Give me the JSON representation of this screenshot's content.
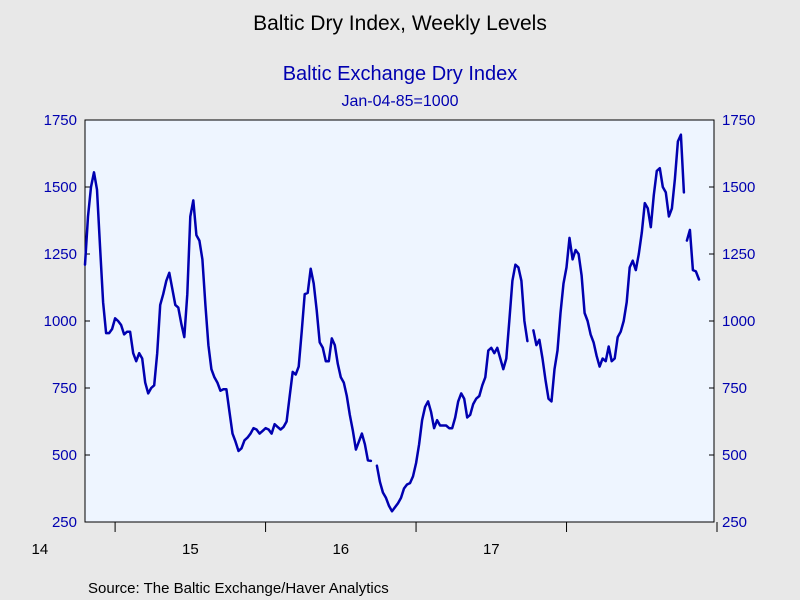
{
  "title": "Baltic Dry Index, Weekly Levels",
  "colors": {
    "page_background": "#e8e8e8",
    "plot_background": "#eef5ff",
    "series": "#0000b0",
    "axis": "#000000"
  },
  "chart_data": {
    "type": "line",
    "title": "Baltic Exchange Dry Index",
    "subtitle": "Jan-04-85=1000",
    "source": "Source:  The Baltic Exchange/Haver Analytics",
    "xlabel": "",
    "ylabel": "",
    "x_ticks": [
      "14",
      "15",
      "16",
      "17"
    ],
    "y_ticks": [
      "250",
      "500",
      "750",
      "1000",
      "1250",
      "1500",
      "1750"
    ],
    "ylim": [
      250,
      1750
    ],
    "xlim": [
      2013.8,
      2017.98
    ],
    "grid": false,
    "legend": "none",
    "y_axis_both_sides": true,
    "series": [
      {
        "segments": [
          [
            [
              2013.8,
              1210
            ],
            [
              2013.82,
              1390
            ],
            [
              2013.84,
              1500
            ],
            [
              2013.86,
              1555
            ],
            [
              2013.88,
              1490
            ],
            [
              2013.9,
              1280
            ],
            [
              2013.92,
              1070
            ],
            [
              2013.94,
              955
            ],
            [
              2013.96,
              955
            ],
            [
              2013.98,
              970
            ],
            [
              2014.0,
              1010
            ],
            [
              2014.02,
              1000
            ],
            [
              2014.04,
              985
            ],
            [
              2014.06,
              950
            ],
            [
              2014.08,
              960
            ],
            [
              2014.1,
              960
            ],
            [
              2014.12,
              880
            ],
            [
              2014.14,
              850
            ],
            [
              2014.16,
              880
            ],
            [
              2014.18,
              860
            ],
            [
              2014.2,
              770
            ],
            [
              2014.22,
              730
            ],
            [
              2014.24,
              750
            ],
            [
              2014.26,
              760
            ],
            [
              2014.28,
              880
            ],
            [
              2014.3,
              1060
            ],
            [
              2014.32,
              1100
            ],
            [
              2014.34,
              1150
            ],
            [
              2014.36,
              1180
            ],
            [
              2014.38,
              1120
            ],
            [
              2014.4,
              1060
            ],
            [
              2014.42,
              1050
            ],
            [
              2014.44,
              990
            ],
            [
              2014.46,
              940
            ],
            [
              2014.48,
              1100
            ],
            [
              2014.5,
              1390
            ],
            [
              2014.52,
              1450
            ],
            [
              2014.54,
              1320
            ],
            [
              2014.56,
              1300
            ],
            [
              2014.58,
              1230
            ],
            [
              2014.6,
              1060
            ],
            [
              2014.62,
              910
            ],
            [
              2014.64,
              820
            ],
            [
              2014.66,
              790
            ],
            [
              2014.68,
              770
            ],
            [
              2014.7,
              740
            ],
            [
              2014.72,
              745
            ],
            [
              2014.74,
              745
            ],
            [
              2014.76,
              660
            ],
            [
              2014.78,
              580
            ],
            [
              2014.8,
              550
            ],
            [
              2014.82,
              515
            ],
            [
              2014.84,
              525
            ],
            [
              2014.86,
              555
            ],
            [
              2014.88,
              565
            ],
            [
              2014.9,
              580
            ],
            [
              2014.92,
              600
            ],
            [
              2014.94,
              595
            ],
            [
              2014.96,
              580
            ],
            [
              2014.98,
              590
            ],
            [
              2015.0,
              600
            ],
            [
              2015.02,
              595
            ],
            [
              2015.04,
              580
            ],
            [
              2015.06,
              615
            ],
            [
              2015.08,
              605
            ],
            [
              2015.1,
              595
            ],
            [
              2015.12,
              605
            ],
            [
              2015.14,
              625
            ],
            [
              2015.16,
              720
            ],
            [
              2015.18,
              810
            ],
            [
              2015.2,
              800
            ],
            [
              2015.22,
              830
            ],
            [
              2015.24,
              960
            ],
            [
              2015.26,
              1100
            ],
            [
              2015.28,
              1105
            ],
            [
              2015.3,
              1195
            ],
            [
              2015.32,
              1140
            ],
            [
              2015.34,
              1040
            ],
            [
              2015.36,
              920
            ],
            [
              2015.38,
              900
            ],
            [
              2015.4,
              850
            ],
            [
              2015.42,
              850
            ],
            [
              2015.44,
              935
            ],
            [
              2015.46,
              910
            ],
            [
              2015.48,
              840
            ],
            [
              2015.5,
              790
            ],
            [
              2015.52,
              770
            ],
            [
              2015.54,
              720
            ],
            [
              2015.56,
              650
            ],
            [
              2015.58,
              590
            ],
            [
              2015.6,
              520
            ],
            [
              2015.62,
              550
            ],
            [
              2015.64,
              580
            ],
            [
              2015.66,
              540
            ],
            [
              2015.68,
              480
            ],
            [
              2015.7,
              478
            ]
          ],
          [
            [
              2015.74,
              460
            ],
            [
              2015.76,
              400
            ],
            [
              2015.78,
              360
            ],
            [
              2015.8,
              340
            ],
            [
              2015.82,
              310
            ],
            [
              2015.84,
              290
            ],
            [
              2015.86,
              305
            ],
            [
              2015.88,
              320
            ],
            [
              2015.9,
              340
            ],
            [
              2015.92,
              375
            ],
            [
              2015.94,
              390
            ],
            [
              2015.96,
              395
            ],
            [
              2015.98,
              420
            ],
            [
              2016.0,
              470
            ],
            [
              2016.02,
              540
            ],
            [
              2016.04,
              630
            ],
            [
              2016.06,
              680
            ],
            [
              2016.08,
              700
            ],
            [
              2016.1,
              660
            ],
            [
              2016.12,
              600
            ],
            [
              2016.14,
              630
            ],
            [
              2016.16,
              610
            ],
            [
              2016.18,
              610
            ],
            [
              2016.2,
              610
            ],
            [
              2016.22,
              600
            ],
            [
              2016.24,
              600
            ],
            [
              2016.26,
              640
            ],
            [
              2016.28,
              700
            ],
            [
              2016.3,
              730
            ],
            [
              2016.32,
              710
            ],
            [
              2016.34,
              640
            ],
            [
              2016.36,
              650
            ],
            [
              2016.38,
              690
            ],
            [
              2016.4,
              710
            ],
            [
              2016.42,
              720
            ],
            [
              2016.44,
              760
            ],
            [
              2016.46,
              790
            ],
            [
              2016.48,
              890
            ],
            [
              2016.5,
              900
            ],
            [
              2016.52,
              880
            ],
            [
              2016.54,
              900
            ],
            [
              2016.56,
              860
            ],
            [
              2016.58,
              820
            ],
            [
              2016.6,
              860
            ],
            [
              2016.62,
              1000
            ],
            [
              2016.64,
              1150
            ],
            [
              2016.66,
              1210
            ],
            [
              2016.68,
              1200
            ],
            [
              2016.7,
              1150
            ],
            [
              2016.72,
              1000
            ],
            [
              2016.74,
              925
            ]
          ],
          [
            [
              2016.78,
              965
            ],
            [
              2016.8,
              910
            ],
            [
              2016.82,
              930
            ],
            [
              2016.84,
              860
            ],
            [
              2016.86,
              780
            ],
            [
              2016.88,
              710
            ],
            [
              2016.9,
              700
            ],
            [
              2016.92,
              820
            ],
            [
              2016.94,
              890
            ],
            [
              2016.96,
              1030
            ],
            [
              2016.98,
              1140
            ],
            [
              2017.0,
              1200
            ],
            [
              2017.02,
              1310
            ],
            [
              2017.04,
              1230
            ],
            [
              2017.06,
              1265
            ],
            [
              2017.08,
              1250
            ],
            [
              2017.1,
              1170
            ],
            [
              2017.12,
              1030
            ],
            [
              2017.14,
              1000
            ],
            [
              2017.16,
              950
            ],
            [
              2017.18,
              920
            ],
            [
              2017.2,
              870
            ],
            [
              2017.22,
              830
            ],
            [
              2017.24,
              860
            ],
            [
              2017.26,
              850
            ],
            [
              2017.28,
              905
            ],
            [
              2017.3,
              850
            ],
            [
              2017.32,
              860
            ],
            [
              2017.34,
              940
            ],
            [
              2017.36,
              960
            ],
            [
              2017.38,
              1000
            ],
            [
              2017.4,
              1070
            ],
            [
              2017.42,
              1200
            ],
            [
              2017.44,
              1225
            ],
            [
              2017.46,
              1190
            ],
            [
              2017.48,
              1250
            ],
            [
              2017.5,
              1330
            ],
            [
              2017.52,
              1440
            ],
            [
              2017.54,
              1420
            ],
            [
              2017.56,
              1350
            ],
            [
              2017.58,
              1470
            ],
            [
              2017.6,
              1560
            ],
            [
              2017.62,
              1570
            ],
            [
              2017.64,
              1500
            ],
            [
              2017.66,
              1480
            ],
            [
              2017.68,
              1390
            ],
            [
              2017.7,
              1420
            ],
            [
              2017.72,
              1530
            ],
            [
              2017.74,
              1670
            ],
            [
              2017.76,
              1695
            ],
            [
              2017.78,
              1480
            ]
          ],
          [
            [
              2017.8,
              1300
            ],
            [
              2017.82,
              1340
            ],
            [
              2017.84,
              1190
            ],
            [
              2017.86,
              1185
            ],
            [
              2017.88,
              1155
            ]
          ]
        ]
      }
    ]
  }
}
